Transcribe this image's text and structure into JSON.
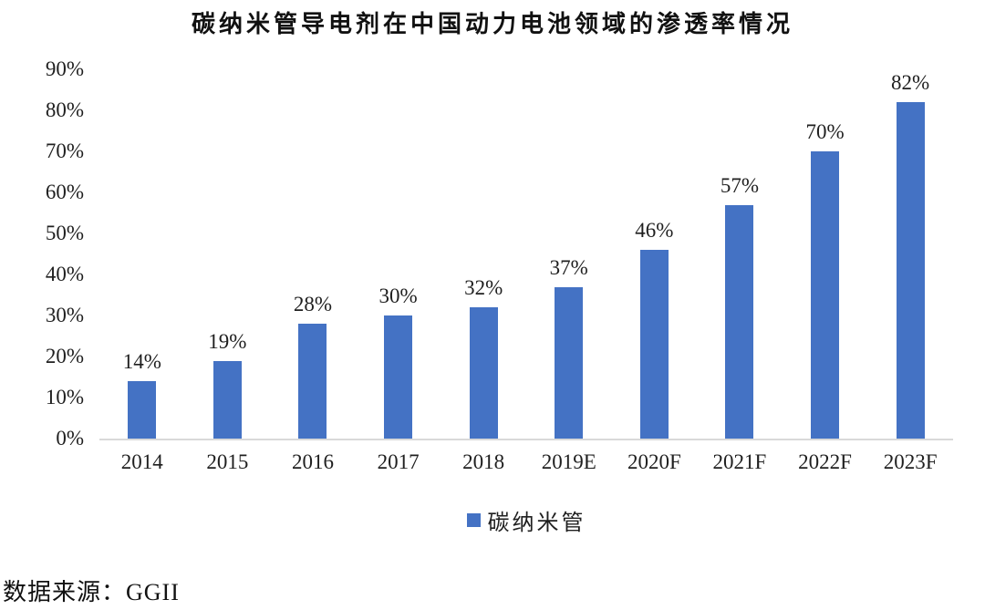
{
  "chart_data": {
    "type": "bar",
    "title": "碳纳米管导电剂在中国动力电池领域的渗透率情况",
    "categories": [
      "2014",
      "2015",
      "2016",
      "2017",
      "2018",
      "2019E",
      "2020F",
      "2021F",
      "2022F",
      "2023F"
    ],
    "series": [
      {
        "name": "碳纳米管",
        "values": [
          14,
          19,
          28,
          30,
          32,
          37,
          46,
          57,
          70,
          82
        ]
      }
    ],
    "data_labels": [
      "14%",
      "19%",
      "28%",
      "30%",
      "32%",
      "37%",
      "46%",
      "57%",
      "70%",
      "82%"
    ],
    "xlabel": "",
    "ylabel": "",
    "ylim": [
      0,
      90
    ],
    "ytick_step": 10,
    "yticks": [
      "0%",
      "10%",
      "20%",
      "30%",
      "40%",
      "50%",
      "60%",
      "70%",
      "80%",
      "90%"
    ],
    "grid": false,
    "legend_position": "bottom",
    "bar_color": "#4472C4",
    "axis_line_color": "#D9D9D9",
    "text_color": "#1f1f1f"
  },
  "source": {
    "label": "数据来源：GGII"
  }
}
